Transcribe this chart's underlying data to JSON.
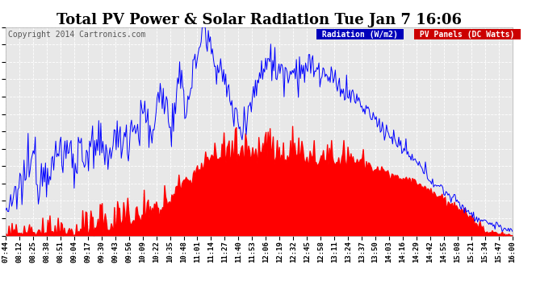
{
  "title": "Total PV Power & Solar Radiation Tue Jan 7 16:06",
  "copyright": "Copyright 2014 Cartronics.com",
  "legend_radiation": "Radiation (W/m2)",
  "legend_pv": "PV Panels (DC Watts)",
  "radiation_color": "#0000ff",
  "pv_color": "#ff0000",
  "background_color": "#ffffff",
  "plot_bg_color": "#e8e8e8",
  "grid_color": "#ffffff",
  "legend_radiation_bg": "#0000cc",
  "legend_pv_bg": "#cc0000",
  "ymax": 482.0,
  "ymin": 0.0,
  "yticks": [
    0.0,
    40.2,
    80.3,
    120.5,
    160.7,
    200.8,
    241.0,
    281.2,
    321.3,
    361.5,
    401.7,
    441.8,
    482.0
  ],
  "xtick_labels": [
    "07:44",
    "08:12",
    "08:25",
    "08:38",
    "08:51",
    "09:04",
    "09:17",
    "09:30",
    "09:43",
    "09:56",
    "10:09",
    "10:22",
    "10:35",
    "10:48",
    "11:01",
    "11:14",
    "11:27",
    "11:40",
    "11:53",
    "12:06",
    "12:19",
    "12:32",
    "12:45",
    "12:58",
    "13:11",
    "13:24",
    "13:37",
    "13:50",
    "14:03",
    "14:16",
    "14:29",
    "14:42",
    "14:55",
    "15:08",
    "15:21",
    "15:34",
    "15:47",
    "16:00"
  ],
  "title_fontsize": 13,
  "copyright_fontsize": 7,
  "legend_fontsize": 7,
  "tick_fontsize": 6.5
}
